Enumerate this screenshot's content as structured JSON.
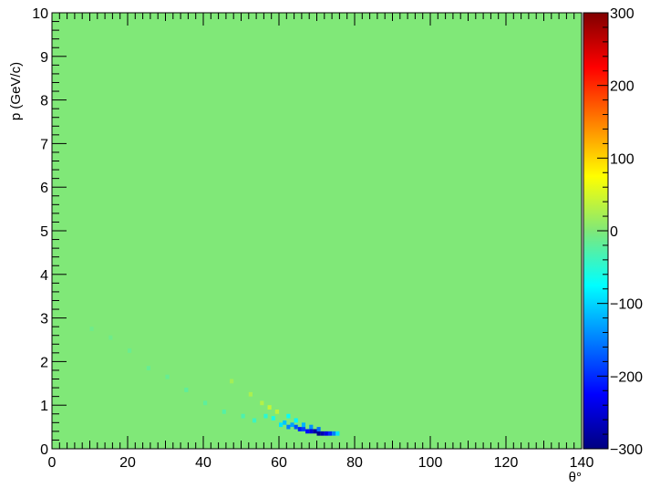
{
  "chart_data": {
    "type": "heatmap",
    "title": "",
    "xlabel": "θ°",
    "ylabel": "p (GeV/c)",
    "xlim": [
      0,
      140
    ],
    "ylim": [
      0,
      10
    ],
    "x_ticks": [
      0,
      20,
      40,
      60,
      80,
      100,
      120,
      140
    ],
    "y_ticks": [
      0,
      1,
      2,
      3,
      4,
      5,
      6,
      7,
      8,
      9,
      10
    ],
    "z_range": [
      -300,
      300
    ],
    "z_ticks": [
      -300,
      -200,
      -100,
      0,
      100,
      200,
      300
    ],
    "z_tick_labels": [
      "−300",
      "−200",
      "−100",
      "0",
      "100",
      "200",
      "300"
    ],
    "colormap": "jet",
    "background_value": 0,
    "grid": false,
    "colorbar_position": "right",
    "cells": [
      {
        "theta": [
          60,
          61
        ],
        "p": [
          0.5,
          0.6
        ],
        "value": -90
      },
      {
        "theta": [
          61,
          62
        ],
        "p": [
          0.55,
          0.65
        ],
        "value": -110
      },
      {
        "theta": [
          62,
          63
        ],
        "p": [
          0.45,
          0.55
        ],
        "value": -150
      },
      {
        "theta": [
          63,
          64
        ],
        "p": [
          0.5,
          0.6
        ],
        "value": -130
      },
      {
        "theta": [
          64,
          65
        ],
        "p": [
          0.45,
          0.55
        ],
        "value": -180
      },
      {
        "theta": [
          65,
          66
        ],
        "p": [
          0.4,
          0.5
        ],
        "value": -210
      },
      {
        "theta": [
          66,
          67
        ],
        "p": [
          0.4,
          0.5
        ],
        "value": -190
      },
      {
        "theta": [
          67,
          68
        ],
        "p": [
          0.35,
          0.45
        ],
        "value": -220
      },
      {
        "theta": [
          68,
          69
        ],
        "p": [
          0.35,
          0.45
        ],
        "value": -250
      },
      {
        "theta": [
          69,
          70
        ],
        "p": [
          0.35,
          0.45
        ],
        "value": -280
      },
      {
        "theta": [
          70,
          71
        ],
        "p": [
          0.3,
          0.4
        ],
        "value": -290
      },
      {
        "theta": [
          71,
          72
        ],
        "p": [
          0.3,
          0.4
        ],
        "value": -270
      },
      {
        "theta": [
          72,
          73
        ],
        "p": [
          0.3,
          0.4
        ],
        "value": -240
      },
      {
        "theta": [
          73,
          74
        ],
        "p": [
          0.3,
          0.4
        ],
        "value": -200
      },
      {
        "theta": [
          74,
          75
        ],
        "p": [
          0.3,
          0.4
        ],
        "value": -150
      },
      {
        "theta": [
          75,
          76
        ],
        "p": [
          0.3,
          0.4
        ],
        "value": -90
      },
      {
        "theta": [
          66,
          67
        ],
        "p": [
          0.5,
          0.6
        ],
        "value": -120
      },
      {
        "theta": [
          68,
          69
        ],
        "p": [
          0.45,
          0.55
        ],
        "value": -140
      },
      {
        "theta": [
          70,
          71
        ],
        "p": [
          0.4,
          0.5
        ],
        "value": -160
      },
      {
        "theta": [
          64,
          65
        ],
        "p": [
          0.6,
          0.7
        ],
        "value": -80
      },
      {
        "theta": [
          58,
          59
        ],
        "p": [
          0.65,
          0.75
        ],
        "value": -60
      },
      {
        "theta": [
          56,
          57
        ],
        "p": [
          0.7,
          0.8
        ],
        "value": -50
      },
      {
        "theta": [
          62,
          63
        ],
        "p": [
          0.7,
          0.8
        ],
        "value": -70
      },
      {
        "theta": [
          57,
          58
        ],
        "p": [
          0.9,
          1.0
        ],
        "value": 40
      },
      {
        "theta": [
          55,
          56
        ],
        "p": [
          1.0,
          1.1
        ],
        "value": 30
      },
      {
        "theta": [
          52,
          53
        ],
        "p": [
          1.2,
          1.3
        ],
        "value": 25
      },
      {
        "theta": [
          47,
          48
        ],
        "p": [
          1.5,
          1.6
        ],
        "value": 20
      },
      {
        "theta": [
          59,
          60
        ],
        "p": [
          0.8,
          0.9
        ],
        "value": 35
      },
      {
        "theta": [
          53,
          54
        ],
        "p": [
          0.6,
          0.7
        ],
        "value": -40
      },
      {
        "theta": [
          50,
          51
        ],
        "p": [
          0.7,
          0.8
        ],
        "value": -30
      },
      {
        "theta": [
          45,
          46
        ],
        "p": [
          0.8,
          0.9
        ],
        "value": -25
      },
      {
        "theta": [
          40,
          41
        ],
        "p": [
          1.0,
          1.1
        ],
        "value": -20
      },
      {
        "theta": [
          35,
          36
        ],
        "p": [
          1.3,
          1.4
        ],
        "value": -20
      },
      {
        "theta": [
          30,
          31
        ],
        "p": [
          1.6,
          1.7
        ],
        "value": -15
      },
      {
        "theta": [
          25,
          26
        ],
        "p": [
          1.8,
          1.9
        ],
        "value": -15
      },
      {
        "theta": [
          20,
          21
        ],
        "p": [
          2.2,
          2.3
        ],
        "value": -12
      },
      {
        "theta": [
          15,
          16
        ],
        "p": [
          2.5,
          2.6
        ],
        "value": -10
      },
      {
        "theta": [
          10,
          11
        ],
        "p": [
          2.7,
          2.8
        ],
        "value": -10
      }
    ]
  }
}
